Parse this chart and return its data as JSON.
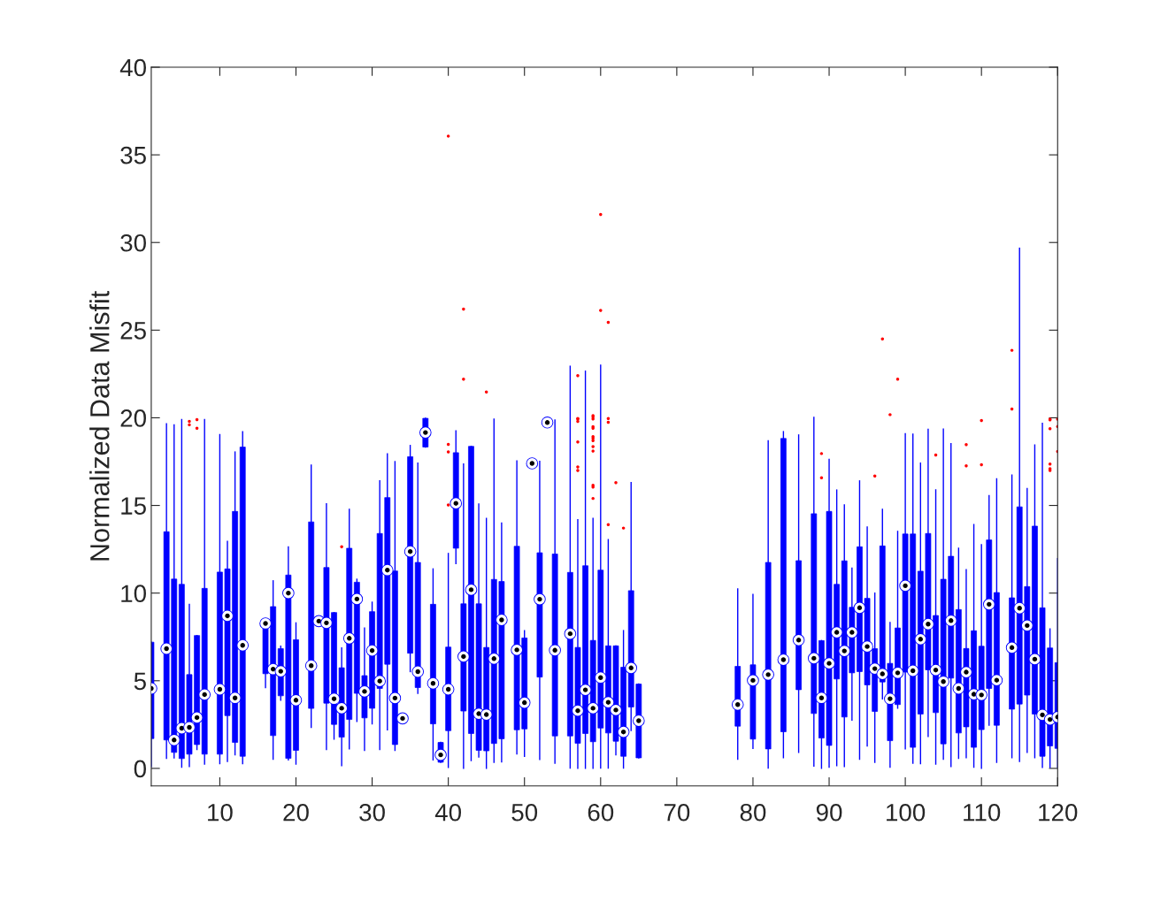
{
  "chart_data": {
    "type": "box",
    "ylabel": "Normalized Data Misfit",
    "xlim": [
      1,
      120
    ],
    "xticks": [
      10,
      20,
      30,
      40,
      50,
      60,
      70,
      80,
      90,
      100,
      110,
      120
    ],
    "ylim": [
      -1,
      40
    ],
    "yticks": [
      0,
      5,
      10,
      15,
      20,
      25,
      30,
      35,
      40
    ],
    "grid": false,
    "legend": false,
    "series": [
      {
        "color": "#0000ff",
        "x": [
          1,
          3,
          4,
          5,
          6,
          7,
          8,
          10,
          11,
          12,
          13,
          16,
          17,
          18,
          19,
          20,
          22,
          23,
          24,
          25,
          26,
          27,
          28,
          29,
          30,
          31,
          32,
          33,
          34,
          35,
          36,
          37,
          38,
          39,
          40,
          41,
          42,
          43,
          44,
          45,
          46,
          47,
          49,
          50,
          51,
          52,
          53,
          54,
          56,
          57,
          58,
          59,
          60,
          61,
          62,
          63,
          64,
          65,
          78,
          80,
          82,
          84,
          86,
          88,
          89,
          90,
          91,
          92,
          93,
          94,
          95,
          96,
          97,
          98,
          99,
          100,
          101,
          102,
          103,
          104,
          105,
          106,
          107,
          108,
          109,
          110,
          111,
          112,
          114,
          115,
          116,
          117,
          118,
          119,
          120
        ],
        "boxes": [
          {
            "low": 0.1,
            "q1": 1.7,
            "median": 4.56,
            "q3": 7.2,
            "high": 7.2
          },
          {
            "low": 0.57,
            "q1": 1.62,
            "median": 6.83,
            "q3": 13.5,
            "high": 19.66
          },
          {
            "low": 0.6,
            "q1": 0.91,
            "median": 1.62,
            "q3": 10.8,
            "high": 19.6
          },
          {
            "low": 0.07,
            "q1": 0.56,
            "median": 2.29,
            "q3": 10.5,
            "high": 19.9
          },
          {
            "low": 0.1,
            "q1": 0.81,
            "median": 2.34,
            "q3": 5.35,
            "high": 9.36,
            "outliers": [
              19.8,
              19.6
            ]
          },
          {
            "low": 1.08,
            "q1": 1.36,
            "median": 2.9,
            "q3": 7.58,
            "high": 7.58,
            "outliers": [
              19.9,
              19.4
            ]
          },
          {
            "low": 0.24,
            "q1": 0.81,
            "median": 4.21,
            "q3": 10.27,
            "high": 19.9
          },
          {
            "low": 0.27,
            "q1": 0.81,
            "median": 4.51,
            "q3": 11.2,
            "high": 19.04
          },
          {
            "low": 0.4,
            "q1": 3.01,
            "median": 8.7,
            "q3": 11.38,
            "high": 12.95
          },
          {
            "low": 0.77,
            "q1": 1.48,
            "median": 4.02,
            "q3": 14.66,
            "high": 18.05
          },
          {
            "low": 0.27,
            "q1": 0.69,
            "median": 7.02,
            "q3": 18.33,
            "high": 19.2
          },
          {
            "low": 4.61,
            "q1": 5.4,
            "median": 8.27,
            "q3": 8.52,
            "high": 8.52
          },
          {
            "low": 0.52,
            "q1": 1.87,
            "median": 5.66,
            "q3": 9.23,
            "high": 10.7
          },
          {
            "low": 3.89,
            "q1": 4.14,
            "median": 5.54,
            "q3": 6.83,
            "high": 6.97
          },
          {
            "low": 0.49,
            "q1": 0.57,
            "median": 10.0,
            "q3": 11.03,
            "high": 12.63
          },
          {
            "low": 0.24,
            "q1": 1.03,
            "median": 3.89,
            "q3": 7.34,
            "high": 8.3
          },
          {
            "low": 2.34,
            "q1": 3.42,
            "median": 5.86,
            "q3": 14.06,
            "high": 17.3
          },
          {
            "low": 8.3,
            "q1": 8.3,
            "median": 8.4,
            "q3": 8.5,
            "high": 8.5
          },
          {
            "low": 1.08,
            "q1": 3.72,
            "median": 8.3,
            "q3": 11.46,
            "high": 15.1
          },
          {
            "low": 1.67,
            "q1": 2.51,
            "median": 3.97,
            "q3": 8.89,
            "high": 8.89
          },
          {
            "low": 0.15,
            "q1": 1.78,
            "median": 3.43,
            "q3": 5.74,
            "high": 6.87,
            "outliers": [
              12.64
            ]
          },
          {
            "low": 1.11,
            "q1": 2.79,
            "median": 7.42,
            "q3": 12.56,
            "high": 14.78
          },
          {
            "low": 2.68,
            "q1": 4.28,
            "median": 9.66,
            "q3": 10.62,
            "high": 10.79
          },
          {
            "low": 1.03,
            "q1": 2.88,
            "median": 4.39,
            "q3": 5.29,
            "high": 8.01
          },
          {
            "low": 2.54,
            "q1": 3.43,
            "median": 6.72,
            "q3": 8.94,
            "high": 9.48
          },
          {
            "low": 1.08,
            "q1": 4.56,
            "median": 4.98,
            "q3": 13.4,
            "high": 16.4
          },
          {
            "low": 2.2,
            "q1": 5.94,
            "median": 11.31,
            "q3": 15.45,
            "high": 17.95
          },
          {
            "low": 1.03,
            "q1": 1.36,
            "median": 4.01,
            "q3": 11.26,
            "high": 17.5
          },
          {
            "low": 2.75,
            "q1": 2.75,
            "median": 2.85,
            "q3": 2.95,
            "high": 2.95
          },
          {
            "low": 5.52,
            "q1": 6.57,
            "median": 12.37,
            "q3": 17.78,
            "high": 18.42
          },
          {
            "low": 4.28,
            "q1": 4.61,
            "median": 5.52,
            "q3": 11.75,
            "high": 17.41
          },
          {
            "low": 18.33,
            "q1": 18.33,
            "median": 19.16,
            "q3": 19.97,
            "high": 19.97
          },
          {
            "low": 0.49,
            "q1": 2.54,
            "median": 4.85,
            "q3": 9.36,
            "high": 11.38
          },
          {
            "low": 0.35,
            "q1": 0.35,
            "median": 0.77,
            "q3": 1.48,
            "high": 1.48
          },
          {
            "low": 0.05,
            "q1": 2.15,
            "median": 4.51,
            "q3": 6.92,
            "high": 12.26,
            "outliers": [
              36.07,
              18.48,
              18.06,
              15.03
            ]
          },
          {
            "low": 11.68,
            "q1": 12.56,
            "median": 15.12,
            "q3": 18.01,
            "high": 19.26
          },
          {
            "low": 0,
            "q1": 3.27,
            "median": 6.38,
            "q3": 9.39,
            "high": 17.36,
            "outliers": [
              26.2,
              22.2
            ]
          },
          {
            "low": 0.45,
            "q1": 1.99,
            "median": 10.19,
            "q3": 18.37,
            "high": 18.37
          },
          {
            "low": 0.65,
            "q1": 1.03,
            "median": 3.12,
            "q3": 9.39,
            "high": 15.08
          },
          {
            "low": 0,
            "q1": 1.0,
            "median": 3.07,
            "q3": 6.9,
            "high": 14.26,
            "outliers": [
              21.47
            ]
          },
          {
            "low": 0.34,
            "q1": 1.42,
            "median": 6.26,
            "q3": 10.78,
            "high": 19.93
          },
          {
            "low": 0.37,
            "q1": 1.69,
            "median": 8.47,
            "q3": 10.66,
            "high": 14.0
          },
          {
            "low": 0.82,
            "q1": 2.2,
            "median": 6.76,
            "q3": 12.67,
            "high": 17.54
          },
          {
            "low": 0.68,
            "q1": 2.25,
            "median": 3.75,
            "q3": 7.44,
            "high": 7.86
          },
          {
            "low": 17.3,
            "q1": 17.3,
            "median": 17.4,
            "q3": 17.5,
            "high": 17.5
          },
          {
            "low": 0.51,
            "q1": 5.21,
            "median": 9.65,
            "q3": 12.3,
            "high": 17.52
          },
          {
            "low": 19.5,
            "q1": 19.5,
            "median": 19.73,
            "q3": 20.0,
            "high": 20.0
          },
          {
            "low": 0.3,
            "q1": 1.85,
            "median": 6.74,
            "q3": 12.23,
            "high": 19.87
          },
          {
            "low": 0.02,
            "q1": 1.85,
            "median": 7.68,
            "q3": 11.18,
            "high": 22.94
          },
          {
            "low": 0,
            "q1": 1.43,
            "median": 3.29,
            "q3": 6.9,
            "high": 14.18,
            "outliers": [
              22.41,
              19.96,
              19.93,
              19.8,
              18.62,
              17.2,
              17.0
            ]
          },
          {
            "low": 0,
            "q1": 1.99,
            "median": 4.48,
            "q3": 11.56,
            "high": 22.66
          },
          {
            "low": 0,
            "q1": 1.52,
            "median": 3.43,
            "q3": 7.3,
            "high": 14.26,
            "outliers": [
              20.13,
              20.05,
              19.93,
              19.49,
              19.4,
              18.93,
              18.83,
              18.7,
              18.36,
              18.1,
              16.15,
              16.05,
              15.4
            ]
          },
          {
            "low": 0.02,
            "q1": 2.3,
            "median": 5.18,
            "q3": 11.31,
            "high": 23.0,
            "outliers": [
              31.6,
              26.13
            ]
          },
          {
            "low": 0.02,
            "q1": 2.02,
            "median": 3.77,
            "q3": 6.99,
            "high": 13.05,
            "outliers": [
              25.45,
              19.96,
              19.75,
              13.91
            ]
          },
          {
            "low": 0.77,
            "q1": 1.55,
            "median": 3.33,
            "q3": 6.99,
            "high": 6.99,
            "outliers": [
              16.3
            ]
          },
          {
            "low": 0.02,
            "q1": 0.69,
            "median": 2.08,
            "q3": 5.77,
            "high": 7.86,
            "outliers": [
              13.71
            ]
          },
          {
            "low": 2.16,
            "q1": 3.5,
            "median": 5.73,
            "q3": 10.14,
            "high": 16.3
          },
          {
            "low": 0.6,
            "q1": 0.6,
            "median": 2.72,
            "q3": 4.81,
            "high": 4.81
          },
          {
            "low": 0.52,
            "q1": 2.41,
            "median": 3.64,
            "q3": 5.82,
            "high": 10.24
          },
          {
            "low": 1.14,
            "q1": 1.67,
            "median": 5.02,
            "q3": 5.91,
            "high": 9.92
          },
          {
            "low": 0.02,
            "q1": 1.11,
            "median": 5.35,
            "q3": 11.75,
            "high": 18.69
          },
          {
            "low": 0.61,
            "q1": 2.09,
            "median": 6.2,
            "q3": 18.82,
            "high": 19.21
          },
          {
            "low": 0.91,
            "q1": 4.49,
            "median": 7.32,
            "q3": 11.85,
            "high": 19.02
          },
          {
            "low": 0.13,
            "q1": 3.13,
            "median": 6.28,
            "q3": 14.53,
            "high": 20.02
          },
          {
            "low": 0,
            "q1": 1.73,
            "median": 4.02,
            "q3": 7.29,
            "high": 7.29,
            "outliers": [
              17.96,
              16.58
            ]
          },
          {
            "low": 0.07,
            "q1": 1.31,
            "median": 5.99,
            "q3": 14.66,
            "high": 17.63
          },
          {
            "low": 0.15,
            "q1": 5.1,
            "median": 7.76,
            "q3": 10.5,
            "high": 15.88
          },
          {
            "low": 0.1,
            "q1": 2.93,
            "median": 6.7,
            "q3": 11.84,
            "high": 15.03
          },
          {
            "low": 2.76,
            "q1": 5.45,
            "median": 7.76,
            "q3": 9.19,
            "high": 11.43
          },
          {
            "low": 0.52,
            "q1": 5.52,
            "median": 9.16,
            "q3": 12.64,
            "high": 16.4
          },
          {
            "low": 1.28,
            "q1": 4.76,
            "median": 6.95,
            "q3": 9.7,
            "high": 13.77
          },
          {
            "low": 0.35,
            "q1": 3.25,
            "median": 5.69,
            "q3": 6.83,
            "high": 10.0,
            "outliers": [
              16.68
            ]
          },
          {
            "low": 3.97,
            "q1": 4.93,
            "median": 5.39,
            "q3": 12.69,
            "high": 14.78,
            "outliers": [
              24.5
            ]
          },
          {
            "low": 0.07,
            "q1": 1.58,
            "median": 3.97,
            "q3": 5.99,
            "high": 8.32,
            "outliers": [
              20.18
            ]
          },
          {
            "low": 3.43,
            "q1": 3.64,
            "median": 5.45,
            "q3": 8.01,
            "high": 13.52,
            "outliers": [
              22.2
            ]
          },
          {
            "low": 1.11,
            "q1": 5.49,
            "median": 10.42,
            "q3": 13.37,
            "high": 19.09
          },
          {
            "low": 0.3,
            "q1": 1.2,
            "median": 5.57,
            "q3": 13.37,
            "high": 19.07
          },
          {
            "low": 0.27,
            "q1": 3.1,
            "median": 7.37,
            "q3": 11.25,
            "high": 17.41
          },
          {
            "low": 1.82,
            "q1": 5.62,
            "median": 8.23,
            "q3": 13.4,
            "high": 19.34
          },
          {
            "low": 0.24,
            "q1": 3.18,
            "median": 5.61,
            "q3": 8.72,
            "high": 15.89,
            "outliers": [
              17.88
            ]
          },
          {
            "low": 0.52,
            "q1": 1.4,
            "median": 4.95,
            "q3": 10.79,
            "high": 19.36
          },
          {
            "low": 0.1,
            "q1": 5.15,
            "median": 8.43,
            "q3": 12.1,
            "high": 18.52
          },
          {
            "low": 0.57,
            "q1": 2.02,
            "median": 4.56,
            "q3": 9.06,
            "high": 12.56
          },
          {
            "low": 0.61,
            "q1": 2.37,
            "median": 5.49,
            "q3": 6.84,
            "high": 11.33,
            "outliers": [
              18.47,
              17.26
            ]
          },
          {
            "low": 0.07,
            "q1": 1.2,
            "median": 4.23,
            "q3": 7.85,
            "high": 13.91
          },
          {
            "low": 0,
            "q1": 2.21,
            "median": 4.19,
            "q3": 6.97,
            "high": 12.76,
            "outliers": [
              19.85,
              17.32
            ]
          },
          {
            "low": 2.46,
            "q1": 4.56,
            "median": 9.36,
            "q3": 13.03,
            "high": 15.56
          },
          {
            "low": 0.35,
            "q1": 2.46,
            "median": 5.03,
            "q3": 10.03,
            "high": 16.52
          },
          {
            "low": 0.61,
            "q1": 3.38,
            "median": 6.89,
            "q3": 9.73,
            "high": 16.73,
            "outliers": [
              23.85,
              20.5
            ]
          },
          {
            "low": 0.4,
            "q1": 3.67,
            "median": 9.14,
            "q3": 14.92,
            "high": 29.67
          },
          {
            "low": 0.91,
            "q1": 4.18,
            "median": 8.15,
            "q3": 10.37,
            "high": 15.96
          },
          {
            "low": 0.61,
            "q1": 3.1,
            "median": 6.23,
            "q3": 13.82,
            "high": 18.45
          },
          {
            "low": 0.05,
            "q1": 0.69,
            "median": 3.05,
            "q3": 9.16,
            "high": 19.68
          },
          {
            "low": 0.05,
            "q1": 1.28,
            "median": 2.79,
            "q3": 6.87,
            "high": 7.96,
            "outliers": [
              19.92,
              19.88,
              19.38,
              17.36,
              17.1,
              17.0
            ]
          },
          {
            "low": 0.05,
            "q1": 1.14,
            "median": 2.93,
            "q3": 6.03,
            "high": 11.97,
            "outliers": [
              19.92,
              19.5,
              18.08
            ]
          }
        ]
      }
    ]
  }
}
